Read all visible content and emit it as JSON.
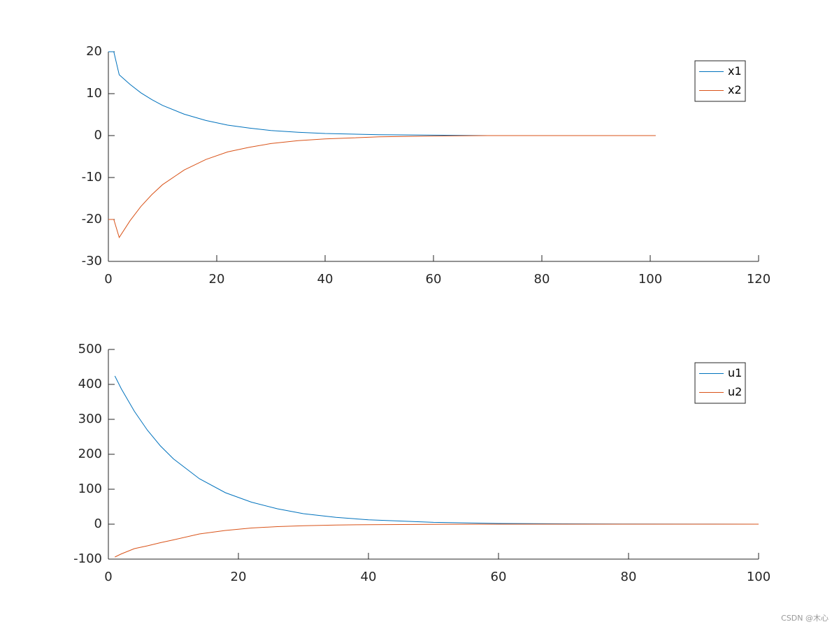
{
  "chart_data": [
    {
      "type": "line",
      "legend_loc": "upper right",
      "x": [
        0,
        1,
        2,
        4,
        6,
        8,
        10,
        14,
        18,
        22,
        26,
        30,
        35,
        40,
        50,
        60,
        70,
        80,
        90,
        101
      ],
      "series": [
        {
          "name": "x1",
          "color": "#0072bd",
          "values": [
            20,
            20,
            14.5,
            12.2,
            10.2,
            8.6,
            7.2,
            5.1,
            3.6,
            2.5,
            1.8,
            1.2,
            0.8,
            0.5,
            0.2,
            0.1,
            0,
            0,
            0,
            0
          ]
        },
        {
          "name": "x2",
          "color": "#d95319",
          "values": [
            -20,
            -20,
            -24.3,
            -20.3,
            -16.9,
            -14.1,
            -11.7,
            -8.2,
            -5.7,
            -3.9,
            -2.8,
            -1.9,
            -1.2,
            -0.8,
            -0.3,
            -0.1,
            0,
            0,
            0,
            0
          ]
        }
      ],
      "xlim": [
        0,
        120
      ],
      "xticks": [
        0,
        20,
        40,
        60,
        80,
        100,
        120
      ],
      "ylim": [
        -30,
        20
      ],
      "yticks": [
        -30,
        -20,
        -10,
        0,
        10,
        20
      ]
    },
    {
      "type": "line",
      "legend_loc": "upper right",
      "x": [
        1,
        2,
        4,
        6,
        8,
        10,
        14,
        18,
        22,
        26,
        30,
        35,
        40,
        50,
        60,
        70,
        80,
        90,
        100
      ],
      "series": [
        {
          "name": "u1",
          "color": "#0072bd",
          "values": [
            424,
            387,
            323,
            269,
            224,
            187,
            130,
            90,
            63,
            44,
            30,
            19.4,
            12.5,
            5.2,
            2.1,
            0.9,
            0.4,
            0.2,
            0.1
          ]
        },
        {
          "name": "u2",
          "color": "#d95319",
          "values": [
            -94,
            -85,
            -70,
            -62,
            -53,
            -45,
            -28,
            -18,
            -11,
            -7,
            -4.5,
            -2.5,
            -1.4,
            -0.4,
            -0.1,
            0,
            0,
            0,
            0
          ]
        }
      ],
      "xlim": [
        0,
        100
      ],
      "xticks": [
        0,
        20,
        40,
        60,
        80,
        100
      ],
      "ylim": [
        -100,
        500
      ],
      "yticks": [
        -100,
        0,
        100,
        200,
        300,
        400,
        500
      ]
    }
  ],
  "watermark": "CSDN @木心"
}
